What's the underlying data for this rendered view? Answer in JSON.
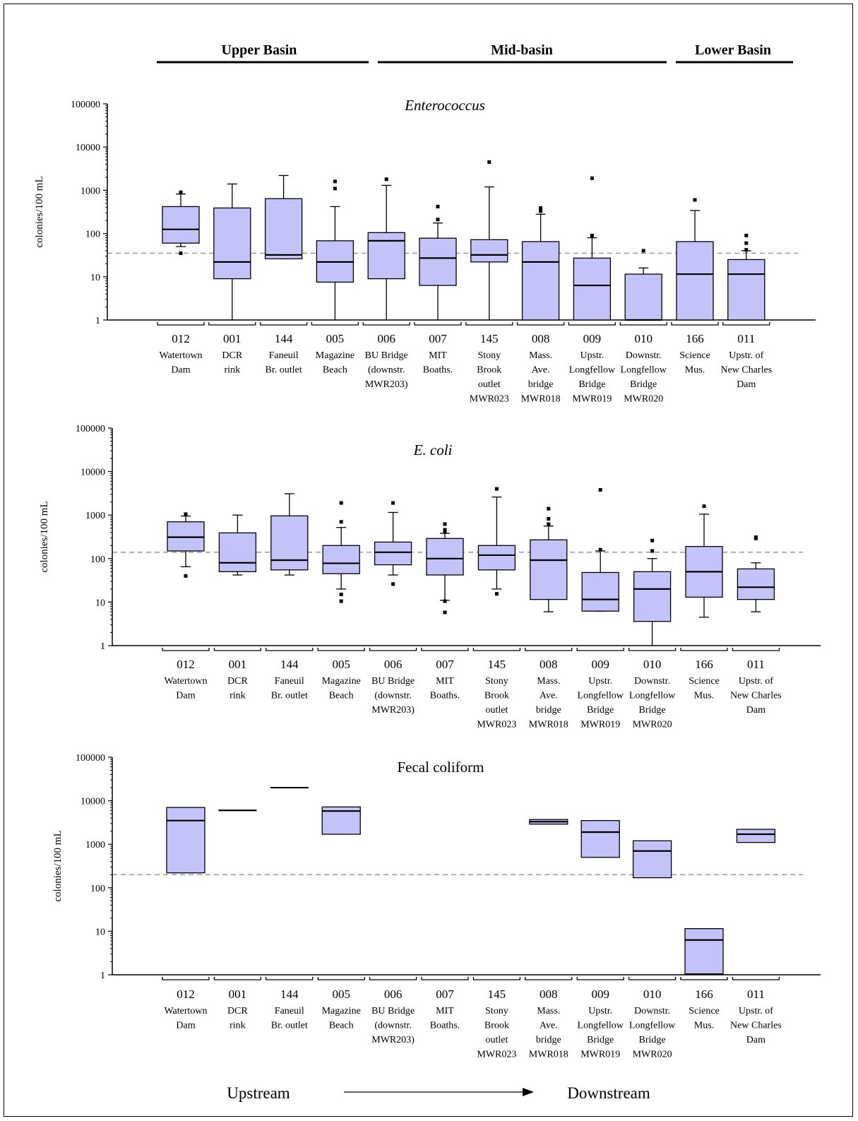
{
  "header": {
    "basins": [
      {
        "label": "Upper Basin"
      },
      {
        "label": "Mid-basin"
      },
      {
        "label": "Lower Basin"
      }
    ]
  },
  "sites": [
    {
      "code": "012",
      "name": [
        "Watertown",
        "Dam"
      ]
    },
    {
      "code": "001",
      "name": [
        "DCR",
        "rink"
      ]
    },
    {
      "code": "144",
      "name": [
        "Faneuil",
        "Br. outlet"
      ]
    },
    {
      "code": "005",
      "name": [
        "Magazine",
        "Beach"
      ]
    },
    {
      "code": "006",
      "name": [
        "BU Bridge",
        "(downstr.",
        "MWR203)"
      ]
    },
    {
      "code": "007",
      "name": [
        "MIT",
        "Boaths."
      ]
    },
    {
      "code": "145",
      "name": [
        "Stony",
        "Brook",
        "outlet",
        "MWR023"
      ]
    },
    {
      "code": "008",
      "name": [
        "Mass.",
        "Ave.",
        "bridge",
        "MWR018"
      ]
    },
    {
      "code": "009",
      "name": [
        "Upstr.",
        "Longfellow",
        "Bridge",
        "MWR019"
      ]
    },
    {
      "code": "010",
      "name": [
        "Downstr.",
        "Longfellow",
        "Bridge",
        "MWR020"
      ]
    },
    {
      "code": "166",
      "name": [
        "Science",
        "Mus."
      ]
    },
    {
      "code": "011",
      "name": [
        "Upstr. of",
        "New Charles",
        "Dam"
      ]
    }
  ],
  "footer": {
    "upstream": "Upstream",
    "downstream": "Downstream"
  },
  "colors": {
    "box_fill": "#c3c3fa",
    "line": "#000000",
    "reference_line": "#999999"
  },
  "chart_data": [
    {
      "type": "boxplot",
      "title": "Enterococcus",
      "title_style": "italic",
      "ylabel": "colonies/100 mL",
      "yscale": "log",
      "ylim": [
        1,
        100000
      ],
      "yticks": [
        "1",
        "10",
        "100",
        "1000",
        "10000",
        "100000"
      ],
      "reference_line": 35,
      "boxes": [
        {
          "site": "012",
          "whisker_low": 50,
          "q1": 60,
          "median": 125,
          "q3": 420,
          "whisker_high": 820,
          "outliers": [
            35,
            900
          ]
        },
        {
          "site": "001",
          "whisker_low": 1,
          "q1": 9,
          "median": 22,
          "q3": 390,
          "whisker_high": 1400,
          "outliers": []
        },
        {
          "site": "144",
          "whisker_low": 26,
          "q1": 26,
          "median": 32,
          "q3": 640,
          "whisker_high": 2200,
          "outliers": []
        },
        {
          "site": "005",
          "whisker_low": 1,
          "q1": 7.5,
          "median": 22,
          "q3": 68,
          "whisker_high": 420,
          "outliers": [
            1100,
            1600
          ]
        },
        {
          "site": "006",
          "whisker_low": 1,
          "q1": 9,
          "median": 68,
          "q3": 105,
          "whisker_high": 1300,
          "outliers": [
            1800
          ]
        },
        {
          "site": "007",
          "whisker_low": 1,
          "q1": 6.3,
          "median": 27,
          "q3": 78,
          "whisker_high": 175,
          "outliers": [
            210,
            420
          ]
        },
        {
          "site": "145",
          "whisker_low": 1,
          "q1": 22,
          "median": 32,
          "q3": 72,
          "whisker_high": 1200,
          "outliers": [
            4500
          ]
        },
        {
          "site": "008",
          "whisker_low": 1,
          "q1": 1,
          "median": 22,
          "q3": 65,
          "whisker_high": 280,
          "outliers": [
            330,
            390
          ]
        },
        {
          "site": "009",
          "whisker_low": 1,
          "q1": 1,
          "median": 6.3,
          "q3": 27,
          "whisker_high": 80,
          "outliers": [
            90,
            1900
          ]
        },
        {
          "site": "010",
          "whisker_low": 1,
          "q1": 1,
          "median": 1,
          "q3": 11.5,
          "whisker_high": 16,
          "outliers": [
            40
          ]
        },
        {
          "site": "166",
          "whisker_low": 1,
          "q1": 1,
          "median": 11.5,
          "q3": 65,
          "whisker_high": 340,
          "outliers": [
            600
          ]
        },
        {
          "site": "011",
          "whisker_low": 1,
          "q1": 1,
          "median": 11.5,
          "q3": 25,
          "whisker_high": 40,
          "outliers": [
            42,
            60,
            90
          ]
        }
      ]
    },
    {
      "type": "boxplot",
      "title": "E. coli",
      "title_style": "italic",
      "ylabel": "colonies/100 mL",
      "yscale": "log",
      "ylim": [
        1,
        100000
      ],
      "yticks": [
        "1",
        "10",
        "100",
        "1000",
        "10000",
        "100000"
      ],
      "reference_line": 140,
      "boxes": [
        {
          "site": "012",
          "whisker_low": 65,
          "q1": 150,
          "median": 310,
          "q3": 700,
          "whisker_high": 950,
          "outliers": [
            40,
            1050
          ]
        },
        {
          "site": "001",
          "whisker_low": 42,
          "q1": 50,
          "median": 80,
          "q3": 390,
          "whisker_high": 1000,
          "outliers": []
        },
        {
          "site": "144",
          "whisker_low": 42,
          "q1": 55,
          "median": 92,
          "q3": 960,
          "whisker_high": 3100,
          "outliers": []
        },
        {
          "site": "005",
          "whisker_low": 20,
          "q1": 45,
          "median": 78,
          "q3": 200,
          "whisker_high": 520,
          "outliers": [
            10.5,
            15,
            700,
            1900
          ]
        },
        {
          "site": "006",
          "whisker_low": 42,
          "q1": 72,
          "median": 140,
          "q3": 240,
          "whisker_high": 1150,
          "outliers": [
            26,
            1900
          ]
        },
        {
          "site": "007",
          "whisker_low": 11,
          "q1": 42,
          "median": 100,
          "q3": 290,
          "whisker_high": 380,
          "outliers": [
            5.8,
            10.5,
            420,
            460,
            620
          ]
        },
        {
          "site": "145",
          "whisker_low": 20,
          "q1": 55,
          "median": 120,
          "q3": 200,
          "whisker_high": 2600,
          "outliers": [
            15.5,
            4000
          ]
        },
        {
          "site": "008",
          "whisker_low": 6,
          "q1": 11.5,
          "median": 92,
          "q3": 270,
          "whisker_high": 560,
          "outliers": [
            620,
            820,
            1400
          ]
        },
        {
          "site": "009",
          "whisker_low": 6.2,
          "q1": 6.2,
          "median": 11.5,
          "q3": 48,
          "whisker_high": 150,
          "outliers": [
            160,
            3800
          ]
        },
        {
          "site": "010",
          "whisker_low": 1,
          "q1": 3.6,
          "median": 20,
          "q3": 50,
          "whisker_high": 100,
          "outliers": [
            150,
            260
          ]
        },
        {
          "site": "166",
          "whisker_low": 4.5,
          "q1": 13,
          "median": 50,
          "q3": 190,
          "whisker_high": 1050,
          "outliers": [
            1600
          ]
        },
        {
          "site": "011",
          "whisker_low": 6,
          "q1": 11.5,
          "median": 22,
          "q3": 58,
          "whisker_high": 80,
          "outliers": [
            290,
            310
          ]
        }
      ]
    },
    {
      "type": "boxplot",
      "title": "Fecal coliform",
      "title_style": "normal",
      "ylabel": "colonies/100 mL",
      "yscale": "log",
      "ylim": [
        1,
        100000
      ],
      "yticks": [
        "1",
        "10",
        "100",
        "1000",
        "10000",
        "100000"
      ],
      "reference_line": 200,
      "boxes": [
        {
          "site": "012",
          "q1": 220,
          "median": 3500,
          "q3": 7000
        },
        {
          "site": "001",
          "q1": 6000,
          "median": 6000,
          "q3": 6000
        },
        {
          "site": "144",
          "q1": 20000,
          "median": 20000,
          "q3": 20000
        },
        {
          "site": "005",
          "q1": 1700,
          "median": 5800,
          "q3": 7200
        },
        {
          "site": "008",
          "q1": 2900,
          "median": 3300,
          "q3": 3700
        },
        {
          "site": "009",
          "q1": 500,
          "median": 1900,
          "q3": 3500
        },
        {
          "site": "010",
          "q1": 170,
          "median": 700,
          "q3": 1200
        },
        {
          "site": "166",
          "q1": 1.05,
          "median": 6.3,
          "q3": 11.5
        },
        {
          "site": "011",
          "q1": 1100,
          "median": 1700,
          "q3": 2200
        }
      ]
    }
  ]
}
